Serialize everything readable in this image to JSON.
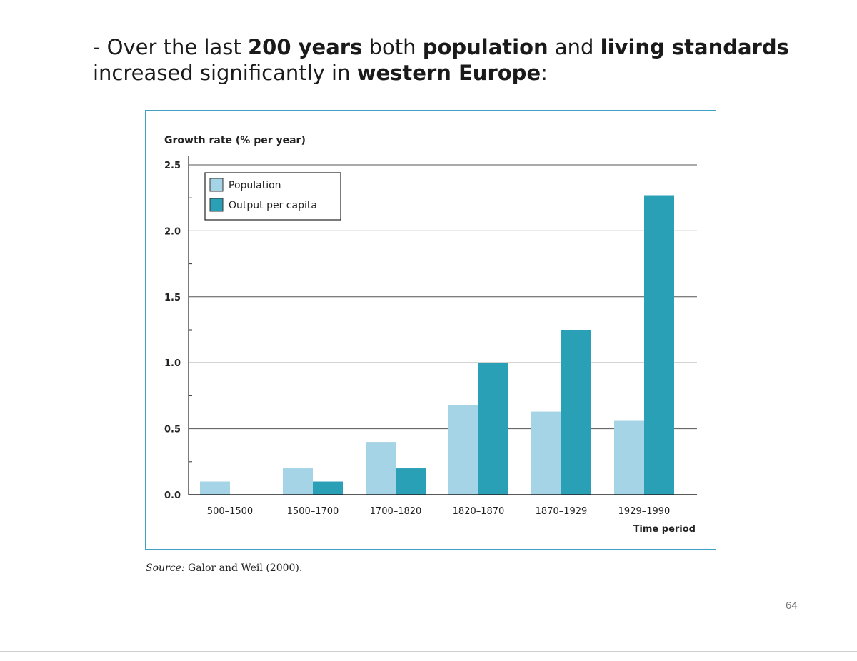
{
  "heading": {
    "prefix": "- Over the last ",
    "b1": "200 years",
    "t1": " both ",
    "b2": "population",
    "t2": " and ",
    "b3": "living standards",
    "line2_prefix": "increased significantly in ",
    "b4": "western Europe",
    "suffix": ":"
  },
  "chart_data": {
    "type": "bar",
    "title": "Growth rate (% per year)",
    "xlabel": "Time period",
    "ylabel": "Growth rate (% per year)",
    "categories": [
      "500–1500",
      "1500–1700",
      "1700–1820",
      "1820–1870",
      "1870–1929",
      "1929–1990"
    ],
    "series": [
      {
        "name": "Population",
        "values": [
          0.1,
          0.2,
          0.4,
          0.68,
          0.63,
          0.56
        ],
        "color": "#a6d4e7"
      },
      {
        "name": "Output per capita",
        "values": [
          0.0,
          0.1,
          0.2,
          1.0,
          1.25,
          2.27
        ],
        "color": "#2aa0b6"
      }
    ],
    "ylim": [
      0,
      2.5
    ],
    "yticks": [
      "0.0",
      "0.5",
      "1.0",
      "1.5",
      "2.0",
      "2.5"
    ],
    "grid": true,
    "legend_position": "top-left"
  },
  "source": {
    "label": "Source:",
    "text": " Galor and Weil (2000)."
  },
  "page_number": "64",
  "colors": {
    "frame": "#3f9fc4",
    "gridline": "#555555"
  }
}
